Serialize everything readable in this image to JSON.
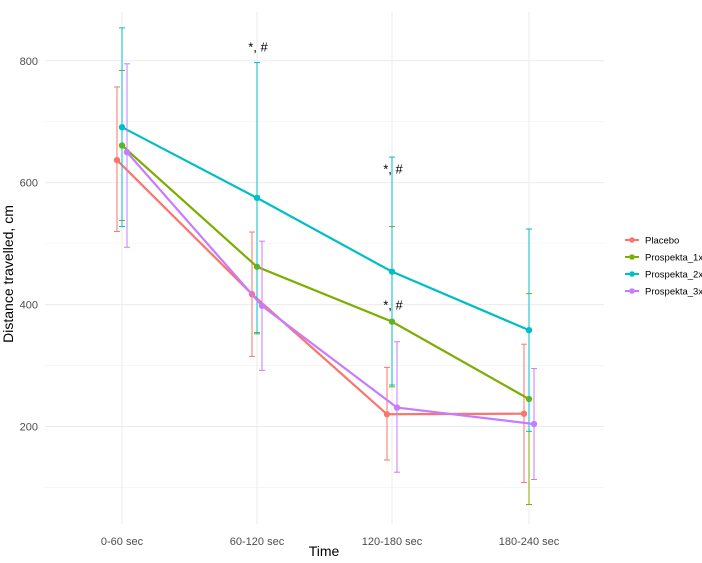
{
  "chart_data": {
    "type": "line",
    "xlabel": "Time",
    "ylabel": "Distance travelled, cm",
    "categories": [
      "0-60 sec",
      "60-120 sec",
      "120-180 sec",
      "180-240 sec"
    ],
    "ylim": [
      40,
      880
    ],
    "yticks": [
      200,
      400,
      600,
      800
    ],
    "grid": true,
    "legend_position": "right",
    "series": [
      {
        "name": "Placebo",
        "color": "#F8766D",
        "values": [
          637,
          417,
          220,
          221
        ],
        "error_low": [
          520,
          315,
          145,
          108
        ],
        "error_high": [
          757,
          519,
          297,
          335
        ]
      },
      {
        "name": "Prospekta_1x",
        "color": "#7CAE00",
        "values": [
          661,
          462,
          372,
          245
        ],
        "error_low": [
          538,
          352,
          265,
          72
        ],
        "error_high": [
          784,
          578,
          528,
          418
        ]
      },
      {
        "name": "Prospekta_2x",
        "color": "#00BFC4",
        "values": [
          691,
          575,
          454,
          358
        ],
        "error_low": [
          528,
          354,
          268,
          192
        ],
        "error_high": [
          854,
          797,
          642,
          524
        ]
      },
      {
        "name": "Prospekta_3x",
        "color": "#C77CFF",
        "values": [
          650,
          398,
          231,
          204
        ],
        "error_low": [
          494,
          292,
          125,
          113
        ],
        "error_high": [
          795,
          504,
          339,
          295
        ]
      }
    ],
    "annotations": [
      {
        "text": "*, #",
        "category": "60-120 sec",
        "y": 815
      },
      {
        "text": "*, #",
        "category": "120-180 sec",
        "y": 615
      },
      {
        "text": "*, #",
        "category": "120-180 sec",
        "y": 392
      }
    ]
  }
}
